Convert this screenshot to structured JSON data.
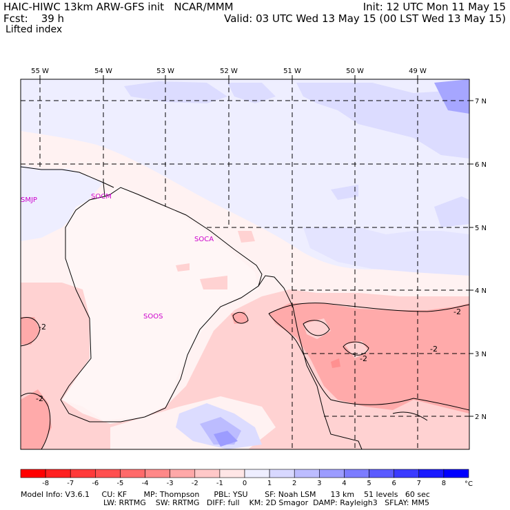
{
  "header": {
    "title": "HAIC-HIWC 13km ARW-GFS init   NCAR/MMM",
    "fcst": "Fcst:    39 h",
    "field": "Lifted index",
    "init": "Init: 12 UTC Mon 11 May 15",
    "valid": "Valid: 03 UTC Wed 13 May 15 (00 LST Wed 13 May 15)"
  },
  "map": {
    "lon_labels": [
      "55 W",
      "54 W",
      "53 W",
      "52 W",
      "51 W",
      "50 W",
      "49 W"
    ],
    "lat_labels": [
      "7 N",
      "6 N",
      "5 N",
      "4 N",
      "3 N",
      "2 N"
    ],
    "stations": [
      "SMJP",
      "SOCM",
      "SOCA",
      "SOOS"
    ],
    "contour_labels": [
      "-2",
      "-2",
      "-2",
      "-2",
      "-2"
    ]
  },
  "colorbar": {
    "ticks": [
      "-8",
      "-7",
      "-6",
      "-5",
      "-4",
      "-3",
      "-2",
      "-1",
      "0",
      "1",
      "2",
      "3",
      "4",
      "5",
      "6",
      "7",
      "8"
    ],
    "unit": "°C",
    "colors": [
      "#ff0000",
      "#ff2020",
      "#ff3a3a",
      "#ff5050",
      "#ff6a6a",
      "#ff8888",
      "#ffa8a8",
      "#ffc8c8",
      "#ffe6e6",
      "#eeeeff",
      "#d8d8ff",
      "#bcbcff",
      "#9c9cff",
      "#7c7cff",
      "#5a5aff",
      "#3a3aff",
      "#1a1aff",
      "#0000ff"
    ]
  },
  "model_info": {
    "line1": "Model Info: V3.6.1     CU: KF       MP: Thompson      PBL: YSU       SF: Noah LSM      13 km    51 levels   60 sec",
    "line2": "LW: RRTMG    SW: RRTMG   DIFF: full    KM: 2D Smagor  DAMP: Rayleigh3   SFLAY: MM5"
  }
}
